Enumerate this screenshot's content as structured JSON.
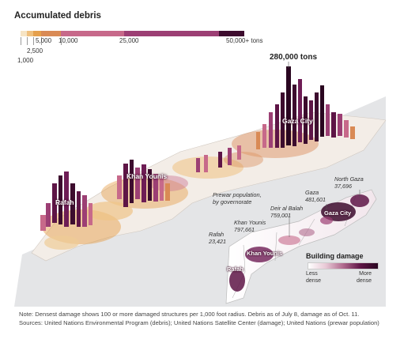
{
  "title": "Accumulated debris",
  "legend": {
    "segments": [
      {
        "color": "#f6e4c4",
        "w": 8
      },
      {
        "color": "#efc07e",
        "w": 8
      },
      {
        "color": "#e5a04c",
        "w": 10
      },
      {
        "color": "#d98a55",
        "w": 25
      },
      {
        "color": "#c7698a",
        "w": 80
      },
      {
        "color": "#9c3f74",
        "w": 120
      },
      {
        "color": "#3d0c2e",
        "w": 32
      }
    ],
    "labels": {
      "v1000": "1,000",
      "v2500": "2,500",
      "v5000": "5,000",
      "v10000": "10,000",
      "v25000": "25,000",
      "v50000": "50,000+ tons"
    }
  },
  "peak_label": "280,000 tons",
  "places": {
    "gaza_city": "Gaza City",
    "khan_younis": "Khan Younis",
    "rafah": "Rafah"
  },
  "inset": {
    "title_line1": "Prewar population,",
    "title_line2": "by governorate",
    "governorates": [
      {
        "name": "North Gaza",
        "pop": "37,696"
      },
      {
        "name": "Gaza",
        "pop": "481,601"
      },
      {
        "name": "Deir al Balah",
        "pop": "759,001"
      },
      {
        "name": "Khan Younis",
        "pop": "797,661"
      },
      {
        "name": "Rafah",
        "pop": "23,421"
      }
    ],
    "labels": {
      "gaza_city": "Gaza City",
      "khan_younis": "Khan Younis",
      "rafah": "Rafah"
    }
  },
  "building_damage": {
    "title": "Building damage",
    "less_1": "Less",
    "less_2": "dense",
    "more_1": "More",
    "more_2": "dense"
  },
  "note": {
    "line1": "Note: Densest damage shows 100 or more damaged structures per 1,000 foot radius. Debris as of July 8, damage as of Oct. 11.",
    "line2": "Sources: United Nations Environmental Program (debris); United Nations Satellite Center (damage); United Nations (prewar population)"
  },
  "colors": {
    "map_bg": "#e4e5e7",
    "strip": "#f2ece6",
    "dark": "#3d0c2e",
    "orange": "#e0913e"
  }
}
